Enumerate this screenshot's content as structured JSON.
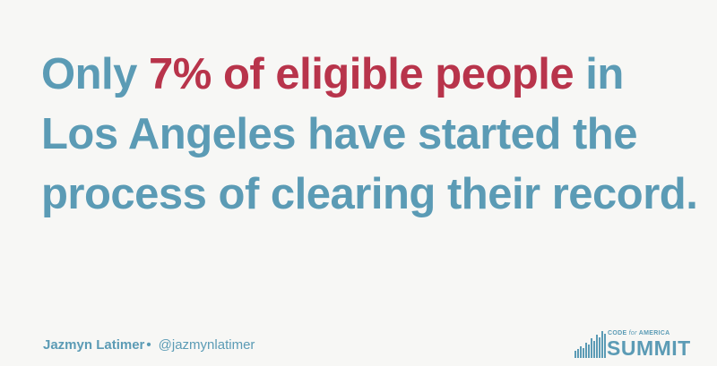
{
  "headline": {
    "line1_lead": "Only ",
    "line1_accent": "7% of eligible people",
    "line1_tail": " in",
    "line2": "Los Angeles have started the",
    "line3": "process of clearing their record."
  },
  "footer": {
    "speaker_name": "Jazmyn Latimer",
    "bullet": "•",
    "handle": "@jazmynlatimer"
  },
  "logo": {
    "org_pre": "CODE ",
    "org_for": "for",
    "org_post": " AMERICA",
    "wordmark": "SUMMIT"
  },
  "colors": {
    "primary": "#5b9bb5",
    "accent": "#b8344b",
    "background": "#f7f7f5"
  }
}
